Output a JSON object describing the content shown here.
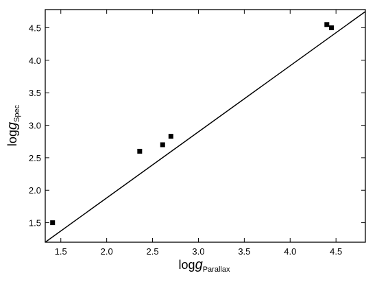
{
  "chart_data": {
    "type": "scatter",
    "xlabel": [
      "log",
      "g",
      "Parallax"
    ],
    "ylabel": [
      "log",
      "g",
      "Spec"
    ],
    "x": [
      1.41,
      2.36,
      2.61,
      2.7,
      4.4,
      4.45
    ],
    "values": [
      1.5,
      2.6,
      2.7,
      2.83,
      4.55,
      4.5
    ],
    "color": "#000000",
    "line": {
      "x": [
        1.33,
        4.82
      ],
      "y": [
        1.2,
        4.75
      ]
    },
    "xlim": [
      1.33,
      4.82
    ],
    "ylim": [
      1.2,
      4.78
    ],
    "xticks": [
      1.5,
      2.0,
      2.5,
      3.0,
      3.5,
      4.0,
      4.5
    ],
    "yticks": [
      1.5,
      2.0,
      2.5,
      3.0,
      3.5,
      4.0,
      4.5
    ],
    "grid": false
  }
}
